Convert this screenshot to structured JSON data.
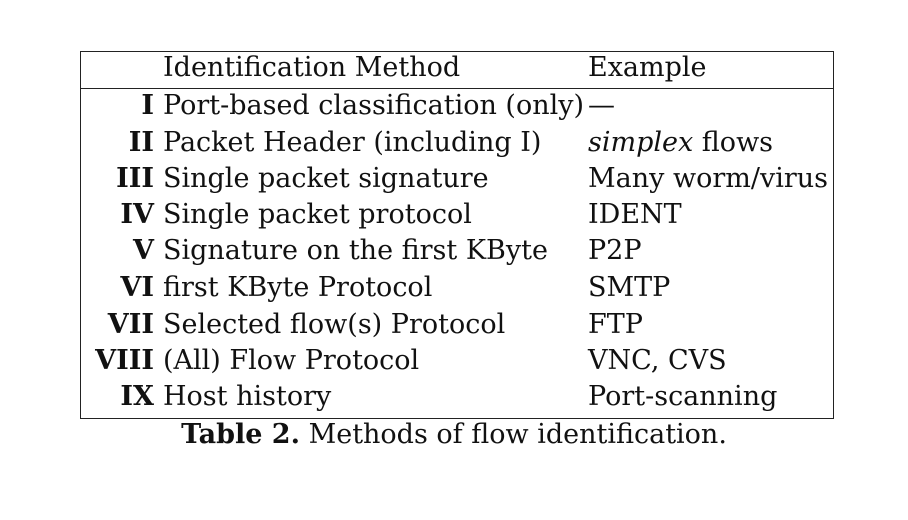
{
  "table": {
    "headers": {
      "method": "Identification Method",
      "example": "Example"
    },
    "rows": [
      {
        "id": "I",
        "method": "Port-based classification (only)",
        "example": "—"
      },
      {
        "id": "II",
        "method": "Packet Header (including I)",
        "example_em": "simplex",
        "example": " flows"
      },
      {
        "id": "III",
        "method": "Single packet signature",
        "example": "Many worm/virus"
      },
      {
        "id": "IV",
        "method": "Single packet protocol",
        "example": "IDENT"
      },
      {
        "id": "V",
        "method": "Signature on the first KByte",
        "example": "P2P"
      },
      {
        "id": "VI",
        "method": "first KByte Protocol",
        "example": "SMTP"
      },
      {
        "id": "VII",
        "method": "Selected flow(s) Protocol",
        "example": "FTP"
      },
      {
        "id": "VIII",
        "method": "(All) Flow Protocol",
        "example": "VNC, CVS"
      },
      {
        "id": "IX",
        "method": "Host history",
        "example": "Port-scanning"
      }
    ]
  },
  "caption": {
    "label": "Table 2.",
    "text": " Methods of flow identification."
  }
}
